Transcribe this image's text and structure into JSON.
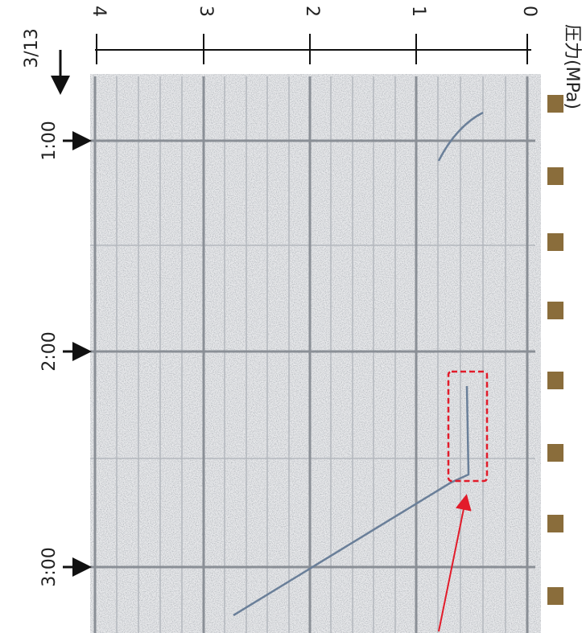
{
  "date": "3/13",
  "pressure_axis": {
    "label": "圧力(MPa)",
    "ticks": [
      "4",
      "3",
      "2",
      "1",
      "0"
    ]
  },
  "time_labels": [
    "1:00",
    "2:00",
    "3:00"
  ]
}
